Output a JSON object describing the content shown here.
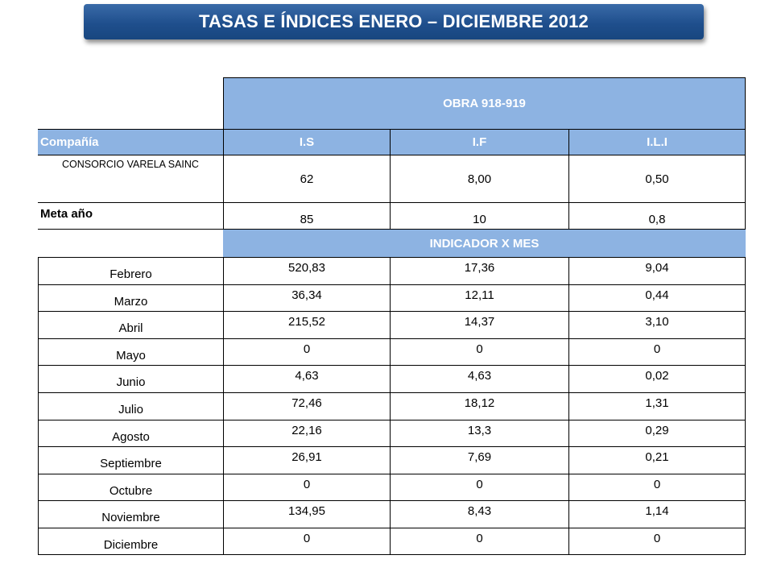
{
  "title": "TASAS E ÍNDICES ENERO – DICIEMBRE 2012",
  "obra_header": "OBRA 918-919",
  "columns": [
    "Compañía",
    "I.S",
    "I.F",
    "I.L.I"
  ],
  "company": {
    "name": "CONSORCIO VARELA SAINC",
    "values": [
      "62",
      "8,00",
      "0,50"
    ]
  },
  "meta": {
    "label": "Meta año",
    "values": [
      "85",
      "10",
      "0,8"
    ]
  },
  "indicator_header": "INDICADOR  X MES",
  "months": [
    {
      "name": "Febrero",
      "values": [
        "520,83",
        "17,36",
        "9,04"
      ]
    },
    {
      "name": "Marzo",
      "values": [
        "36,34",
        "12,11",
        "0,44"
      ]
    },
    {
      "name": "Abril",
      "values": [
        "215,52",
        "14,37",
        "3,10"
      ]
    },
    {
      "name": "Mayo",
      "values": [
        "0",
        "0",
        "0"
      ]
    },
    {
      "name": "Junio",
      "values": [
        "4,63",
        "4,63",
        "0,02"
      ]
    },
    {
      "name": "Julio",
      "values": [
        "72,46",
        "18,12",
        "1,31"
      ]
    },
    {
      "name": "Agosto",
      "values": [
        "22,16",
        "13,3",
        "0,29"
      ]
    },
    {
      "name": "Septiembre",
      "values": [
        "26,91",
        "7,69",
        "0,21"
      ]
    },
    {
      "name": "Octubre",
      "values": [
        "0",
        "0",
        "0"
      ]
    },
    {
      "name": "Noviembre",
      "values": [
        "134,95",
        "8,43",
        "1,14"
      ]
    },
    {
      "name": "Diciembre",
      "values": [
        "0",
        "0",
        "0"
      ]
    }
  ],
  "colors": {
    "banner": "#1f4f8d",
    "header_fill": "#8db3e2"
  }
}
